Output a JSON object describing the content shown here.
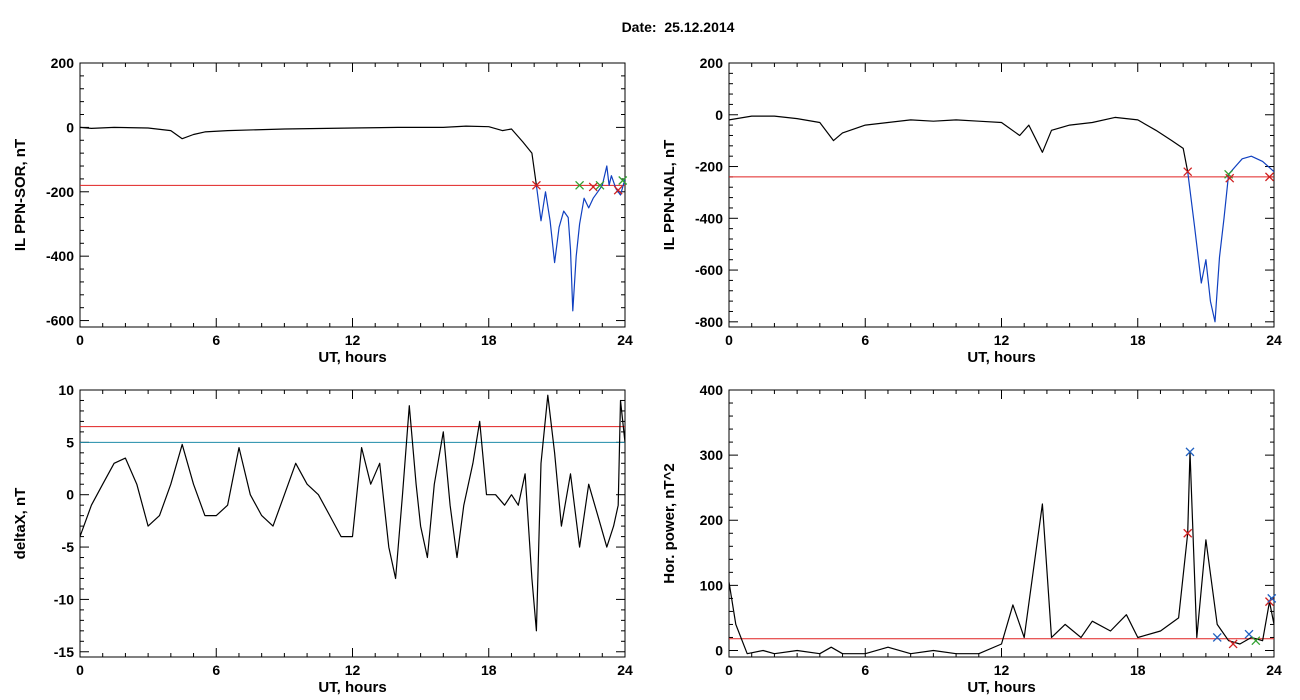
{
  "header": {
    "date_label": "Date:",
    "date_value": "25.12.2014"
  },
  "colors": {
    "data_line": "#000000",
    "event_segment": "#1040c0",
    "threshold_red": "#e02020",
    "threshold_blue": "#1f8ba8",
    "marker_red": "#d02020",
    "marker_green": "#30a030",
    "marker_blue": "#2060c0"
  },
  "chart_data": [
    {
      "type": "line",
      "id": "ppn-sor",
      "ylabel": "IL PPN-SOR, nT",
      "xlabel": "UT, hours",
      "xlim": [
        0,
        24
      ],
      "ylim": [
        -620,
        200
      ],
      "xticks": [
        0,
        6,
        12,
        18,
        24
      ],
      "yticks": [
        200,
        0,
        -200,
        -400,
        -600
      ],
      "series": [
        {
          "values": [
            [
              0,
              0
            ],
            [
              0.5,
              -3
            ],
            [
              1.5,
              0
            ],
            [
              3,
              -2
            ],
            [
              4,
              -10
            ],
            [
              4.5,
              -35
            ],
            [
              5,
              -22
            ],
            [
              5.5,
              -14
            ],
            [
              6.5,
              -10
            ],
            [
              9,
              -5
            ],
            [
              12,
              -2
            ],
            [
              14,
              0
            ],
            [
              16,
              0
            ],
            [
              17,
              4
            ],
            [
              18,
              2
            ],
            [
              18.6,
              -10
            ],
            [
              19,
              -5
            ],
            [
              19.5,
              -45
            ],
            [
              19.9,
              -80
            ],
            [
              20.1,
              -180
            ]
          ]
        },
        {
          "values": [
            [
              20.1,
              -180
            ],
            [
              20.3,
              -290
            ],
            [
              20.5,
              -200
            ],
            [
              20.7,
              -290
            ],
            [
              20.9,
              -420
            ],
            [
              21.1,
              -310
            ],
            [
              21.3,
              -260
            ],
            [
              21.5,
              -280
            ],
            [
              21.6,
              -380
            ],
            [
              21.7,
              -570
            ],
            [
              21.85,
              -400
            ],
            [
              22,
              -300
            ],
            [
              22.2,
              -220
            ],
            [
              22.4,
              -250
            ],
            [
              22.6,
              -220
            ],
            [
              22.8,
              -200
            ],
            [
              23,
              -180
            ],
            [
              23.2,
              -120
            ],
            [
              23.3,
              -180
            ],
            [
              23.4,
              -150
            ],
            [
              23.6,
              -190
            ],
            [
              23.8,
              -210
            ],
            [
              24,
              -160
            ]
          ]
        }
      ],
      "thresholds": [
        -180
      ],
      "markers": [
        {
          "x": 20.1,
          "y": -180,
          "color": "red"
        },
        {
          "x": 22.0,
          "y": -180,
          "color": "green"
        },
        {
          "x": 22.6,
          "y": -185,
          "color": "red"
        },
        {
          "x": 22.9,
          "y": -180,
          "color": "green"
        },
        {
          "x": 23.7,
          "y": -195,
          "color": "red"
        },
        {
          "x": 23.9,
          "y": -165,
          "color": "green"
        }
      ]
    },
    {
      "type": "line",
      "id": "ppn-nal",
      "ylabel": "IL PPN-NAL, nT",
      "xlabel": "UT, hours",
      "xlim": [
        0,
        24
      ],
      "ylim": [
        -820,
        200
      ],
      "xticks": [
        0,
        6,
        12,
        18,
        24
      ],
      "yticks": [
        200,
        0,
        -200,
        -400,
        -600,
        -800
      ],
      "series": [
        {
          "values": [
            [
              0,
              -20
            ],
            [
              1,
              -5
            ],
            [
              2,
              -5
            ],
            [
              3,
              -15
            ],
            [
              4,
              -30
            ],
            [
              4.6,
              -100
            ],
            [
              5,
              -70
            ],
            [
              6,
              -40
            ],
            [
              7,
              -30
            ],
            [
              8,
              -20
            ],
            [
              9,
              -25
            ],
            [
              10,
              -20
            ],
            [
              11,
              -25
            ],
            [
              12,
              -30
            ],
            [
              12.8,
              -80
            ],
            [
              13.2,
              -40
            ],
            [
              13.8,
              -145
            ],
            [
              14.2,
              -60
            ],
            [
              15,
              -40
            ],
            [
              16,
              -30
            ],
            [
              17,
              -10
            ],
            [
              18,
              -20
            ],
            [
              18.8,
              -60
            ],
            [
              19.5,
              -100
            ],
            [
              20,
              -130
            ],
            [
              20.2,
              -220
            ]
          ]
        },
        {
          "values": [
            [
              20.2,
              -220
            ],
            [
              20.5,
              -430
            ],
            [
              20.8,
              -650
            ],
            [
              21.0,
              -560
            ],
            [
              21.2,
              -720
            ],
            [
              21.4,
              -800
            ],
            [
              21.6,
              -550
            ],
            [
              21.8,
              -400
            ],
            [
              22.0,
              -230
            ],
            [
              22.3,
              -200
            ],
            [
              22.6,
              -170
            ],
            [
              23,
              -160
            ],
            [
              23.5,
              -180
            ],
            [
              24,
              -220
            ]
          ]
        }
      ],
      "thresholds": [
        -240
      ],
      "markers": [
        {
          "x": 20.2,
          "y": -220,
          "color": "red"
        },
        {
          "x": 22.0,
          "y": -230,
          "color": "green"
        },
        {
          "x": 22.05,
          "y": -245,
          "color": "red"
        },
        {
          "x": 23.8,
          "y": -240,
          "color": "red"
        }
      ]
    },
    {
      "type": "line",
      "id": "deltax",
      "ylabel": "deltaX, nT",
      "xlabel": "UT, hours",
      "xlim": [
        0,
        24
      ],
      "ylim": [
        -15.5,
        10
      ],
      "xticks": [
        0,
        6,
        12,
        18,
        24
      ],
      "yticks": [
        10,
        5,
        0,
        -5,
        -10,
        -15
      ],
      "series": [
        {
          "values": [
            [
              0,
              -4
            ],
            [
              0.5,
              -1
            ],
            [
              1,
              1
            ],
            [
              1.5,
              3
            ],
            [
              2,
              3.5
            ],
            [
              2.5,
              1
            ],
            [
              3,
              -3
            ],
            [
              3.5,
              -2
            ],
            [
              4,
              1
            ],
            [
              4.5,
              4.8
            ],
            [
              5,
              1
            ],
            [
              5.5,
              -2
            ],
            [
              6,
              -2
            ],
            [
              6.5,
              -1
            ],
            [
              7,
              4.5
            ],
            [
              7.5,
              0
            ],
            [
              8,
              -2
            ],
            [
              8.5,
              -3
            ],
            [
              9,
              0
            ],
            [
              9.5,
              3
            ],
            [
              10,
              1
            ],
            [
              10.5,
              0
            ],
            [
              11,
              -2
            ],
            [
              11.5,
              -4
            ],
            [
              12,
              -4
            ],
            [
              12.4,
              4.5
            ],
            [
              12.8,
              1
            ],
            [
              13.2,
              3
            ],
            [
              13.6,
              -5
            ],
            [
              13.9,
              -8
            ],
            [
              14.2,
              0
            ],
            [
              14.5,
              8.5
            ],
            [
              14.8,
              1
            ],
            [
              15,
              -3
            ],
            [
              15.3,
              -6
            ],
            [
              15.6,
              1
            ],
            [
              16,
              6
            ],
            [
              16.3,
              -1
            ],
            [
              16.6,
              -6
            ],
            [
              16.9,
              -1
            ],
            [
              17.3,
              3
            ],
            [
              17.6,
              7
            ],
            [
              17.9,
              0
            ],
            [
              18.3,
              0
            ],
            [
              18.7,
              -1
            ],
            [
              19,
              0
            ],
            [
              19.3,
              -1
            ],
            [
              19.6,
              2
            ],
            [
              19.9,
              -8
            ],
            [
              20.1,
              -13
            ],
            [
              20.3,
              3
            ],
            [
              20.6,
              9.5
            ],
            [
              20.9,
              4
            ],
            [
              21.2,
              -3
            ],
            [
              21.6,
              2
            ],
            [
              22,
              -5
            ],
            [
              22.4,
              1
            ],
            [
              22.8,
              -2
            ],
            [
              23.2,
              -5
            ],
            [
              23.5,
              -3
            ],
            [
              23.7,
              -1
            ],
            [
              23.8,
              9
            ],
            [
              24,
              5
            ]
          ]
        }
      ],
      "thresholds": [
        6.5,
        5
      ],
      "threshold_colors": [
        "red",
        "blue"
      ],
      "markers": []
    },
    {
      "type": "line",
      "id": "hor-power",
      "ylabel": "Hor. power, nT^2",
      "xlabel": "UT, hours",
      "xlim": [
        0,
        24
      ],
      "ylim": [
        -10,
        400
      ],
      "xticks": [
        0,
        6,
        12,
        18,
        24
      ],
      "yticks": [
        400,
        300,
        200,
        100,
        0
      ],
      "series": [
        {
          "values": [
            [
              0,
              105
            ],
            [
              0.3,
              40
            ],
            [
              0.8,
              -5
            ],
            [
              1.5,
              0
            ],
            [
              2,
              -5
            ],
            [
              3,
              0
            ],
            [
              4,
              -5
            ],
            [
              4.5,
              5
            ],
            [
              5,
              -5
            ],
            [
              6,
              -5
            ],
            [
              7,
              5
            ],
            [
              8,
              -5
            ],
            [
              9,
              0
            ],
            [
              10,
              -5
            ],
            [
              11,
              -5
            ],
            [
              12,
              10
            ],
            [
              12.5,
              70
            ],
            [
              13,
              20
            ],
            [
              13.8,
              225
            ],
            [
              14.2,
              20
            ],
            [
              14.8,
              40
            ],
            [
              15.5,
              20
            ],
            [
              16,
              45
            ],
            [
              16.8,
              30
            ],
            [
              17.5,
              55
            ],
            [
              18,
              20
            ],
            [
              19,
              30
            ],
            [
              19.8,
              50
            ],
            [
              20.2,
              180
            ],
            [
              20.3,
              305
            ],
            [
              20.6,
              20
            ],
            [
              21,
              170
            ],
            [
              21.5,
              40
            ],
            [
              22,
              15
            ],
            [
              22.5,
              10
            ],
            [
              23,
              20
            ],
            [
              23.5,
              15
            ],
            [
              23.8,
              75
            ],
            [
              24,
              40
            ]
          ]
        }
      ],
      "thresholds": [
        18
      ],
      "markers": [
        {
          "x": 20.2,
          "y": 180,
          "color": "red"
        },
        {
          "x": 20.3,
          "y": 305,
          "color": "blue"
        },
        {
          "x": 21.5,
          "y": 20,
          "color": "blue"
        },
        {
          "x": 22.2,
          "y": 10,
          "color": "red"
        },
        {
          "x": 22.9,
          "y": 25,
          "color": "blue"
        },
        {
          "x": 23.2,
          "y": 15,
          "color": "green"
        },
        {
          "x": 23.8,
          "y": 75,
          "color": "red"
        },
        {
          "x": 23.9,
          "y": 80,
          "color": "blue"
        }
      ]
    }
  ]
}
